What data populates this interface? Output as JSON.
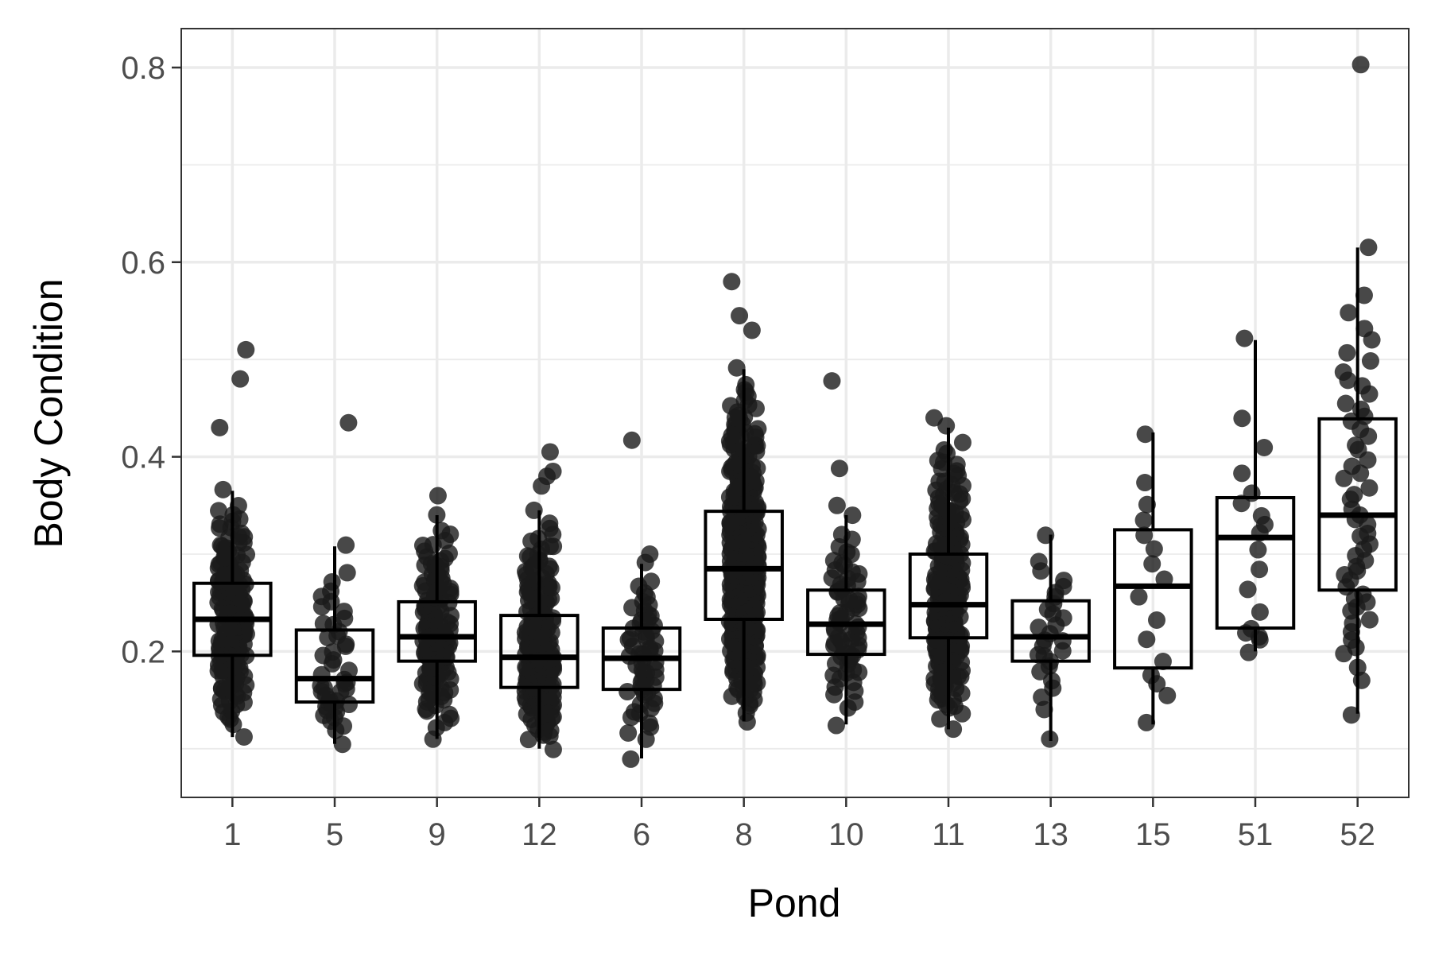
{
  "chart_data": {
    "type": "box",
    "title": "",
    "xlabel": "Pond",
    "ylabel": "Body Condition",
    "ylim": [
      0.05,
      0.84
    ],
    "y_ticks": [
      0.2,
      0.4,
      0.6,
      0.8
    ],
    "y_tick_labels": [
      "0.2",
      "0.4",
      "0.6",
      "0.8"
    ],
    "grid": true,
    "categories": [
      "1",
      "5",
      "9",
      "12",
      "6",
      "8",
      "10",
      "11",
      "13",
      "15",
      "51",
      "52"
    ],
    "boxes": [
      {
        "category": "1",
        "whisker_low": 0.112,
        "q1": 0.196,
        "median": 0.233,
        "q3": 0.27,
        "whisker_high": 0.365,
        "n_points": 180,
        "outliers": [
          0.43,
          0.48,
          0.51
        ]
      },
      {
        "category": "5",
        "whisker_low": 0.105,
        "q1": 0.148,
        "median": 0.172,
        "q3": 0.222,
        "whisker_high": 0.308,
        "n_points": 45,
        "outliers": [
          0.435
        ]
      },
      {
        "category": "9",
        "whisker_low": 0.11,
        "q1": 0.19,
        "median": 0.215,
        "q3": 0.251,
        "whisker_high": 0.34,
        "n_points": 150,
        "outliers": [
          0.36
        ]
      },
      {
        "category": "12",
        "whisker_low": 0.1,
        "q1": 0.163,
        "median": 0.194,
        "q3": 0.237,
        "whisker_high": 0.345,
        "n_points": 220,
        "outliers": [
          0.37,
          0.38,
          0.385,
          0.405
        ]
      },
      {
        "category": "6",
        "whisker_low": 0.09,
        "q1": 0.161,
        "median": 0.193,
        "q3": 0.224,
        "whisker_high": 0.29,
        "n_points": 60,
        "outliers": [
          0.3,
          0.417
        ]
      },
      {
        "category": "8",
        "whisker_low": 0.128,
        "q1": 0.233,
        "median": 0.285,
        "q3": 0.344,
        "whisker_high": 0.49,
        "n_points": 400,
        "outliers": [
          0.53,
          0.545,
          0.58
        ]
      },
      {
        "category": "10",
        "whisker_low": 0.125,
        "q1": 0.197,
        "median": 0.228,
        "q3": 0.263,
        "whisker_high": 0.34,
        "n_points": 70,
        "outliers": [
          0.35,
          0.388,
          0.478
        ]
      },
      {
        "category": "11",
        "whisker_low": 0.12,
        "q1": 0.214,
        "median": 0.248,
        "q3": 0.3,
        "whisker_high": 0.43,
        "n_points": 260,
        "outliers": [
          0.44
        ]
      },
      {
        "category": "13",
        "whisker_low": 0.108,
        "q1": 0.19,
        "median": 0.215,
        "q3": 0.252,
        "whisker_high": 0.32,
        "n_points": 28,
        "outliers": []
      },
      {
        "category": "15",
        "whisker_low": 0.125,
        "q1": 0.183,
        "median": 0.267,
        "q3": 0.325,
        "whisker_high": 0.425,
        "n_points": 16,
        "outliers": []
      },
      {
        "category": "51",
        "whisker_low": 0.2,
        "q1": 0.224,
        "median": 0.317,
        "q3": 0.358,
        "whisker_high": 0.52,
        "n_points": 18,
        "outliers": []
      },
      {
        "category": "52",
        "whisker_low": 0.136,
        "q1": 0.263,
        "median": 0.34,
        "q3": 0.439,
        "whisker_high": 0.615,
        "n_points": 55,
        "outliers": [
          0.803
        ]
      }
    ],
    "point_style": {
      "color": "#1a1a1a",
      "opacity": 0.8
    },
    "colors": {
      "box_stroke": "#000000",
      "panel_border": "#333333",
      "grid": "#ebebeb",
      "background": "#ffffff"
    }
  }
}
